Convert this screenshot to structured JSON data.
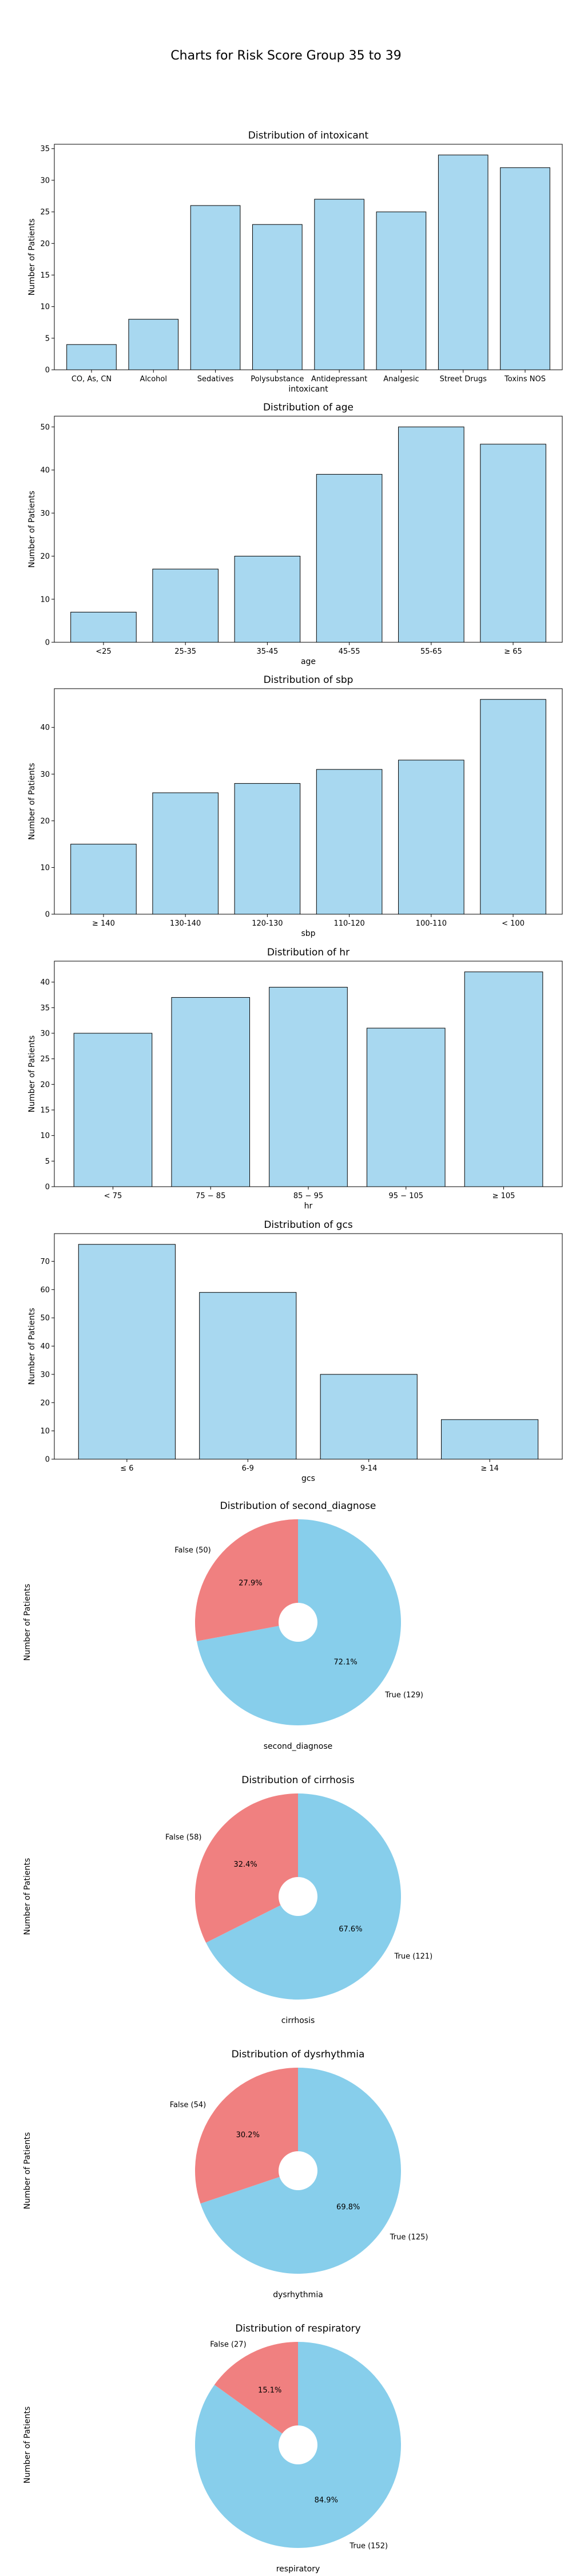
{
  "figure": {
    "title": "Charts for Risk Score Group 35 to 39",
    "colors": {
      "bar": "#a8d8f0",
      "edge": "#000000",
      "pie_true": "#87ceeb",
      "pie_false": "#f08080"
    }
  },
  "chart_data": [
    {
      "type": "bar",
      "title": "Distribution of intoxicant",
      "xlabel": "intoxicant",
      "ylabel": "Number of Patients",
      "categories": [
        "CO, As, CN",
        "Alcohol",
        "Sedatives",
        "Polysubstance",
        "Antidepressant",
        "Analgesic",
        "Street Drugs",
        "Toxins NOS"
      ],
      "values": [
        4,
        8,
        26,
        23,
        27,
        25,
        34,
        32
      ],
      "ylim": [
        0,
        35.7
      ],
      "yticks": [
        0,
        5,
        10,
        15,
        20,
        25,
        30,
        35
      ],
      "grid": false
    },
    {
      "type": "bar",
      "title": "Distribution of age",
      "xlabel": "age",
      "ylabel": "Number of Patients",
      "categories": [
        "<25",
        "25-35",
        "35-45",
        "45-55",
        "55-65",
        "≥ 65"
      ],
      "values": [
        7,
        17,
        20,
        39,
        50,
        46
      ],
      "ylim": [
        0,
        52.5
      ],
      "yticks": [
        0,
        10,
        20,
        30,
        40,
        50
      ],
      "grid": false
    },
    {
      "type": "bar",
      "title": "Distribution of sbp",
      "xlabel": "sbp",
      "ylabel": "Number of Patients",
      "categories": [
        "≥ 140",
        "130-140",
        "120-130",
        "110-120",
        "100-110",
        "< 100"
      ],
      "values": [
        15,
        26,
        28,
        31,
        33,
        46
      ],
      "ylim": [
        0,
        48.3
      ],
      "yticks": [
        0,
        10,
        20,
        30,
        40
      ],
      "grid": false
    },
    {
      "type": "bar",
      "title": "Distribution of hr",
      "xlabel": "hr",
      "ylabel": "Number of Patients",
      "categories": [
        "< 75",
        "75 − 85",
        "85 − 95",
        "95 − 105",
        "≥ 105"
      ],
      "values": [
        30,
        37,
        39,
        31,
        42
      ],
      "ylim": [
        0,
        44.1
      ],
      "yticks": [
        0,
        5,
        10,
        15,
        20,
        25,
        30,
        35,
        40
      ],
      "grid": false
    },
    {
      "type": "bar",
      "title": "Distribution of gcs",
      "xlabel": "gcs",
      "ylabel": "Number of Patients",
      "categories": [
        "≤ 6",
        "6-9",
        "9-14",
        "≥ 14"
      ],
      "values": [
        76,
        59,
        30,
        14
      ],
      "ylim": [
        0,
        79.8
      ],
      "yticks": [
        0,
        10,
        20,
        30,
        40,
        50,
        60,
        70
      ],
      "grid": false
    },
    {
      "type": "pie",
      "title": "Distribution of second_diagnose",
      "xlabel": "second_diagnose",
      "ylabel": "Number of Patients",
      "slices": [
        {
          "label": "True (129)",
          "value": 129,
          "pct": "72.1%"
        },
        {
          "label": "False (50)",
          "value": 50,
          "pct": "27.9%"
        }
      ]
    },
    {
      "type": "pie",
      "title": "Distribution of cirrhosis",
      "xlabel": "cirrhosis",
      "ylabel": "Number of Patients",
      "slices": [
        {
          "label": "True (121)",
          "value": 121,
          "pct": "67.6%"
        },
        {
          "label": "False (58)",
          "value": 58,
          "pct": "32.4%"
        }
      ]
    },
    {
      "type": "pie",
      "title": "Distribution of dysrhythmia",
      "xlabel": "dysrhythmia",
      "ylabel": "Number of Patients",
      "slices": [
        {
          "label": "True (125)",
          "value": 125,
          "pct": "69.8%"
        },
        {
          "label": "False (54)",
          "value": 54,
          "pct": "30.2%"
        }
      ]
    },
    {
      "type": "pie",
      "title": "Distribution of respiratory",
      "xlabel": "respiratory",
      "ylabel": "Number of Patients",
      "slices": [
        {
          "label": "True (152)",
          "value": 152,
          "pct": "84.9%"
        },
        {
          "label": "False (27)",
          "value": 27,
          "pct": "15.1%"
        }
      ]
    }
  ]
}
